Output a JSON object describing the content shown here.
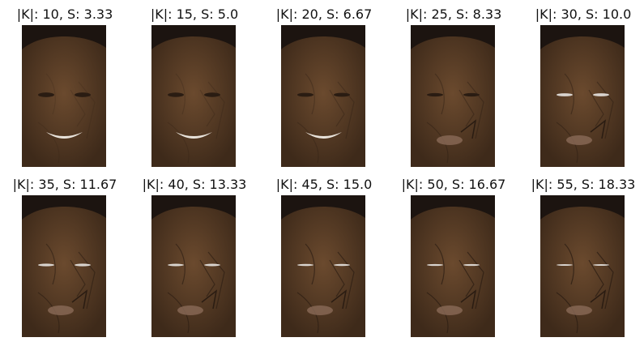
{
  "panels": [
    {
      "title": "|K|: 10, S: 3.33",
      "distortion": 0.05
    },
    {
      "title": "|K|: 15, S: 5.0",
      "distortion": 0.15
    },
    {
      "title": "|K|: 20, S: 6.67",
      "distortion": 0.3
    },
    {
      "title": "|K|: 25, S: 8.33",
      "distortion": 0.45
    },
    {
      "title": "|K|: 30, S: 10.0",
      "distortion": 0.55
    },
    {
      "title": "|K|: 35, S: 11.67",
      "distortion": 0.7
    },
    {
      "title": "|K|: 40, S: 13.33",
      "distortion": 0.78
    },
    {
      "title": "|K|: 45, S: 15.0",
      "distortion": 0.85
    },
    {
      "title": "|K|: 50, S: 16.67",
      "distortion": 0.92
    },
    {
      "title": "|K|: 55, S: 18.33",
      "distortion": 1.0
    }
  ],
  "colors": {
    "skin": "#6b4a2e",
    "skin_dark": "#3e2a1a",
    "hair": "#1c1410",
    "background": "#5a5a55",
    "teeth": "#e8e2da",
    "eye_white": "#d9d4cf"
  }
}
